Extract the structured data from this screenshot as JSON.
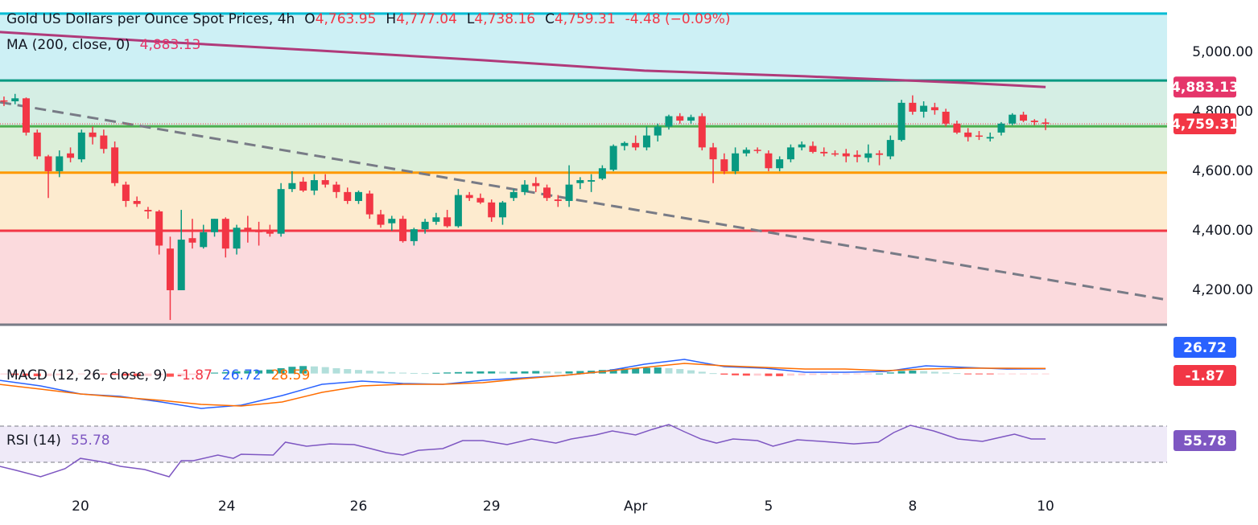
{
  "chart_data": {
    "type": "candlestick",
    "title": "Gold US Dollars per Ounce Spot Prices, 4h",
    "quote": [
      {
        "key": "O",
        "value": "4,763.95"
      },
      {
        "key": "H",
        "value": "4,777.04"
      },
      {
        "key": "L",
        "value": "4,738.16"
      },
      {
        "key": "C",
        "value": "4,759.31"
      }
    ],
    "change": "-4.48 (−0.09%)",
    "quote_color": "#f23645",
    "up_color": "#089981",
    "down_color": "#f23645",
    "open": [
      4838,
      4835,
      4845,
      4730,
      4650,
      4600,
      4660,
      4640,
      4730,
      4720,
      4680,
      4555,
      4500,
      4470,
      4465,
      4340,
      4200,
      4375,
      4345,
      4395,
      4440,
      4340,
      4410,
      4400,
      4400,
      4390,
      4540,
      4565,
      4535,
      4570,
      4555,
      4530,
      4500,
      4525,
      4455,
      4425,
      4440,
      4365,
      4405,
      4430,
      4445,
      4415,
      4520,
      4510,
      4495,
      4445,
      4510,
      4530,
      4560,
      4545,
      4505,
      4500,
      4560,
      4565,
      4575,
      4605,
      4685,
      4695,
      4680,
      4720,
      4750,
      4785,
      4770,
      4785,
      4680,
      4640,
      4600,
      4660,
      4672,
      4660,
      4610,
      4640,
      4680,
      4685,
      4665,
      4660,
      4660,
      4655,
      4645,
      4660,
      4650,
      4705,
      4830,
      4800,
      4815,
      4800,
      4760,
      4730,
      4720,
      4710,
      4730,
      4760,
      4790,
      4770,
      4763.95
    ],
    "high": [
      4851,
      4860,
      4848,
      4740,
      4655,
      4670,
      4680,
      4740,
      4750,
      4740,
      4700,
      4565,
      4515,
      4480,
      4470,
      4380,
      4470,
      4440,
      4420,
      4440,
      4445,
      4420,
      4450,
      4430,
      4420,
      4560,
      4600,
      4580,
      4590,
      4590,
      4565,
      4545,
      4535,
      4535,
      4470,
      4450,
      4450,
      4410,
      4440,
      4460,
      4470,
      4540,
      4530,
      4525,
      4505,
      4500,
      4540,
      4570,
      4580,
      4555,
      4520,
      4620,
      4580,
      4590,
      4620,
      4690,
      4700,
      4720,
      4750,
      4760,
      4790,
      4795,
      4790,
      4795,
      4695,
      4660,
      4680,
      4680,
      4680,
      4670,
      4650,
      4690,
      4700,
      4700,
      4680,
      4670,
      4675,
      4670,
      4690,
      4670,
      4720,
      4840,
      4855,
      4835,
      4830,
      4810,
      4770,
      4745,
      4735,
      4730,
      4765,
      4795,
      4800,
      4775,
      4777.04
    ],
    "low": [
      4819,
      4825,
      4720,
      4640,
      4510,
      4580,
      4630,
      4630,
      4690,
      4660,
      4550,
      4480,
      4480,
      4440,
      4320,
      4100,
      4200,
      4340,
      4340,
      4380,
      4310,
      4320,
      4360,
      4350,
      4380,
      4380,
      4530,
      4530,
      4520,
      4545,
      4510,
      4490,
      4490,
      4440,
      4410,
      4400,
      4360,
      4350,
      4390,
      4420,
      4410,
      4410,
      4500,
      4490,
      4430,
      4420,
      4500,
      4520,
      4530,
      4500,
      4480,
      4480,
      4540,
      4530,
      4570,
      4600,
      4670,
      4670,
      4670,
      4700,
      4740,
      4760,
      4760,
      4670,
      4560,
      4590,
      4590,
      4650,
      4660,
      4600,
      4600,
      4630,
      4670,
      4660,
      4650,
      4650,
      4630,
      4630,
      4630,
      4620,
      4640,
      4700,
      4790,
      4780,
      4790,
      4750,
      4725,
      4700,
      4705,
      4700,
      4720,
      4755,
      4765,
      4755,
      4738.16
    ],
    "close": [
      4835,
      4845,
      4730,
      4650,
      4600,
      4650,
      4645,
      4730,
      4715,
      4675,
      4560,
      4500,
      4490,
      4465,
      4350,
      4200,
      4370,
      4360,
      4395,
      4440,
      4340,
      4410,
      4400,
      4395,
      4390,
      4540,
      4560,
      4535,
      4570,
      4555,
      4530,
      4500,
      4530,
      4455,
      4420,
      4440,
      4365,
      4405,
      4430,
      4445,
      4415,
      4520,
      4510,
      4495,
      4445,
      4495,
      4530,
      4555,
      4550,
      4510,
      4500,
      4555,
      4570,
      4570,
      4610,
      4685,
      4695,
      4680,
      4720,
      4750,
      4785,
      4770,
      4782,
      4680,
      4640,
      4600,
      4660,
      4672,
      4668,
      4610,
      4640,
      4680,
      4690,
      4665,
      4660,
      4658,
      4650,
      4648,
      4660,
      4655,
      4705,
      4830,
      4800,
      4820,
      4805,
      4760,
      4730,
      4715,
      4718,
      4715,
      4760,
      4790,
      4770,
      4765,
      4759.31
    ],
    "xlim": [
      -0.36,
      104.6
    ],
    "xticks": [
      {
        "value": 6.9,
        "label": "20"
      },
      {
        "value": 20.1,
        "label": "24"
      },
      {
        "value": 32,
        "label": "26"
      },
      {
        "value": 44,
        "label": "29"
      },
      {
        "value": 57,
        "label": "Apr"
      },
      {
        "value": 69,
        "label": "5"
      },
      {
        "value": 82,
        "label": "8"
      },
      {
        "value": 94,
        "label": "10"
      }
    ],
    "ylim": [
      4081,
      5135
    ],
    "yticks": [
      {
        "value": 5000,
        "label": "5,000.00"
      },
      {
        "value": 4800,
        "label": "4,800.00"
      },
      {
        "value": 4600,
        "label": "4,600.00"
      },
      {
        "value": 4400,
        "label": "4,400.00"
      },
      {
        "value": 4200,
        "label": "4,200.00"
      }
    ],
    "levels": [
      {
        "value": 5130,
        "color": "#00bcd4",
        "fill": "#cdf0f5"
      },
      {
        "value": 4905,
        "color": "#089981",
        "fill": "#d5eee4"
      },
      {
        "value": 4751,
        "color": "#4caf50",
        "fill": "#dcefd9"
      },
      {
        "value": 4595,
        "color": "#ff9800",
        "fill": "#fdebcf"
      },
      {
        "value": 4400,
        "color": "#f23645",
        "fill": "#fbdadd"
      },
      {
        "value": 4084,
        "color": "#787b86"
      }
    ],
    "trendline": {
      "color": "#787b86",
      "x": [
        -0.36,
        104.6
      ],
      "values": [
        4832,
        4170
      ]
    },
    "ma": {
      "label": "MA (200, close, 0)",
      "value_label": "4,883.13",
      "color": "#b03a7a",
      "badge_color": "#e5356a",
      "x": [
        -0.4,
        14.2,
        28.7,
        43.2,
        57.8,
        72.3,
        86.8,
        94
      ],
      "values": [
        5068,
        5035,
        5005,
        4973,
        4938,
        4919,
        4897,
        4883.13
      ]
    },
    "last_price": {
      "value": 4759.31,
      "label": "4,759.31",
      "color": "#f23645"
    },
    "macd": {
      "label": "MACD (12, 26, close, 9)",
      "ylim": [
        -250,
        120
      ],
      "readouts": [
        {
          "text": "-1.87",
          "color": "#f23645"
        },
        {
          "text": "26.72",
          "color": "#2962ff"
        },
        {
          "text": "28.59",
          "color": "#ff6d00"
        }
      ],
      "hist_colors": [
        "#26a69a",
        "#b2dfdb",
        "#ffcdd2",
        "#ff5252"
      ],
      "histogram": [
        -5,
        -8,
        -12,
        -15,
        -14,
        -10,
        -6,
        -3,
        -2,
        -4,
        -8,
        -12,
        -15,
        -14,
        -10,
        -18,
        -14,
        -8,
        -2,
        5,
        8,
        12,
        15,
        18,
        22,
        30,
        38,
        42,
        40,
        36,
        30,
        25,
        20,
        16,
        12,
        8,
        5,
        3,
        2,
        4,
        6,
        8,
        10,
        12,
        12,
        10,
        10,
        12,
        14,
        12,
        10,
        12,
        14,
        16,
        20,
        24,
        28,
        30,
        32,
        34,
        30,
        25,
        18,
        10,
        2,
        -6,
        -10,
        -12,
        -12,
        -14,
        -15,
        -12,
        -10,
        -8,
        -7,
        -6,
        -5,
        -4,
        -2,
        0,
        6,
        14,
        16,
        14,
        10,
        6,
        2,
        -1,
        -3,
        -4,
        -3,
        -2,
        -2,
        -2,
        -1.87
      ],
      "macd_line": {
        "color": "#2962ff",
        "x": [
          -0.4,
          3.3,
          6.9,
          10.5,
          14.2,
          17.8,
          21.4,
          25.1,
          28.7,
          32.3,
          36,
          39.6,
          43.2,
          46.9,
          50.5,
          54.1,
          57.8,
          61.4,
          65,
          68.7,
          72.3,
          75.9,
          79.6,
          83.2,
          86.8,
          90.5,
          94
        ],
        "values": [
          -37.9,
          -69.5,
          -114.6,
          -128.2,
          -159.8,
          -195.8,
          -177.8,
          -123.6,
          -60.5,
          -42.4,
          -56,
          -60.5,
          -37.9,
          -24.4,
          -10.8,
          11.7,
          52.3,
          79.4,
          38.8,
          29.8,
          7.2,
          7.2,
          11.7,
          43.3,
          34.3,
          25.3,
          26.72
        ]
      },
      "signal_line": {
        "color": "#ff6d00",
        "x": [
          -0.4,
          3.3,
          6.9,
          10.5,
          14.2,
          17.8,
          21.4,
          25.1,
          28.7,
          32.3,
          36,
          39.6,
          43.2,
          46.9,
          50.5,
          54.1,
          57.8,
          61.4,
          65,
          68.7,
          72.3,
          75.9,
          79.6,
          83.2,
          86.8,
          90.5,
          94
        ],
        "values": [
          -60.5,
          -87.5,
          -114.6,
          -132.7,
          -150.7,
          -173.3,
          -182.3,
          -159.7,
          -105.6,
          -69.5,
          -60.5,
          -60.5,
          -51.4,
          -28.9,
          -10.8,
          11.7,
          34.3,
          56.9,
          43.3,
          34.3,
          25.3,
          25.3,
          16.2,
          25.3,
          29.8,
          29.8,
          28.59
        ]
      }
    },
    "rsi": {
      "label": "RSI (14)",
      "value_label": "55.78",
      "color": "#7e57c2",
      "band_fill": "#efeaf8",
      "bands": [
        30,
        70
      ],
      "ylim": [
        7.8,
        78.9
      ],
      "x": [
        -0.4,
        1.1,
        3.3,
        5.5,
        6.9,
        9.1,
        10.5,
        12.7,
        14.9,
        16,
        17.1,
        19.3,
        20.7,
        21.4,
        24.3,
        25.4,
        27.3,
        29.4,
        31.6,
        33.1,
        34.5,
        36,
        37.4,
        39.6,
        41.4,
        43.2,
        45.4,
        47.6,
        49.8,
        51.2,
        53.4,
        54.9,
        57,
        58.5,
        60,
        61.4,
        62.9,
        64.3,
        65.8,
        68,
        69.4,
        71.6,
        73.8,
        76.7,
        78.9,
        80.3,
        81.8,
        83.9,
        86.1,
        88.3,
        90.5,
        91.2,
        92.7,
        94
      ],
      "values": [
        25.6,
        21.1,
        14,
        22.9,
        34.4,
        30,
        25.6,
        22,
        14,
        31.8,
        31.8,
        38,
        34.4,
        38.9,
        38,
        52.2,
        47.8,
        50.4,
        49.6,
        45.1,
        40.7,
        38,
        43.3,
        45.1,
        54,
        54,
        49.6,
        55.8,
        51.3,
        55.8,
        60.2,
        64.7,
        60.2,
        66.4,
        71.8,
        63.8,
        55.8,
        51.3,
        55.8,
        54,
        47.8,
        54.9,
        53.1,
        50.4,
        52.2,
        62.9,
        70.9,
        64.7,
        55.8,
        53.1,
        59.3,
        61.1,
        55.8,
        55.78
      ]
    }
  }
}
